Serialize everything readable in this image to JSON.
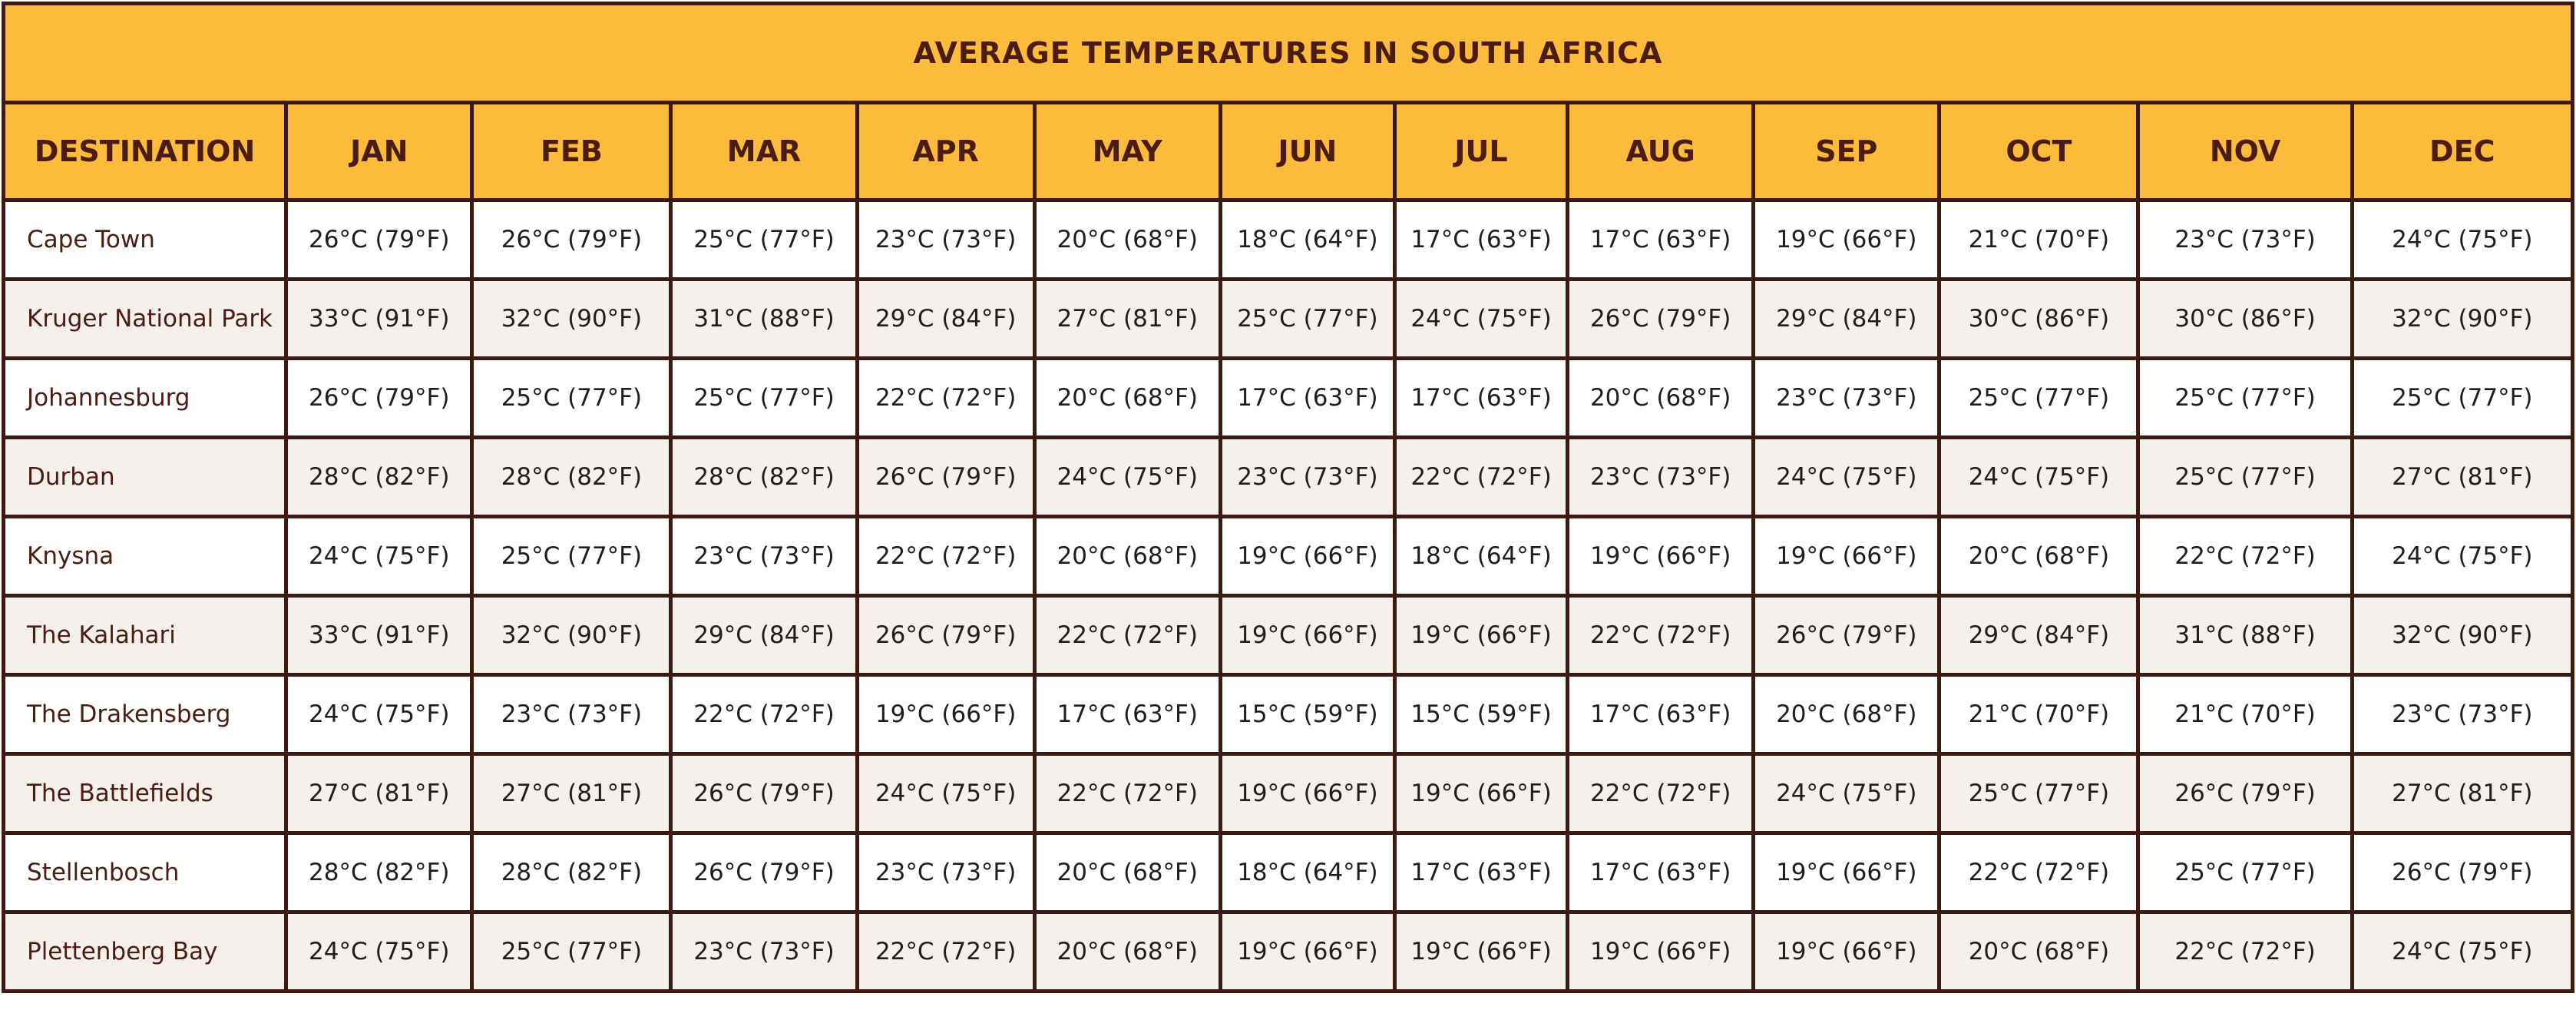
{
  "title": "AVERAGE TEMPERATURES IN SOUTH AFRICA",
  "table": {
    "header": [
      "DESTINATION",
      "JAN",
      "FEB",
      "MAR",
      "APR",
      "MAY",
      "JUN",
      "JUL",
      "AUG",
      "SEP",
      "OCT",
      "NOV",
      "DEC"
    ],
    "rows": [
      [
        "Cape Town",
        "26°C (79°F)",
        "26°C (79°F)",
        "25°C (77°F)",
        "23°C (73°F)",
        "20°C (68°F)",
        "18°C (64°F)",
        "17°C (63°F)",
        "17°C (63°F)",
        "19°C (66°F)",
        "21°C (70°F)",
        "23°C (73°F)",
        "24°C (75°F)"
      ],
      [
        "Kruger National Park",
        "33°C (91°F)",
        "32°C (90°F)",
        "31°C (88°F)",
        "29°C (84°F)",
        "27°C (81°F)",
        "25°C (77°F)",
        "24°C (75°F)",
        "26°C (79°F)",
        "29°C (84°F)",
        "30°C (86°F)",
        "30°C (86°F)",
        "32°C (90°F)"
      ],
      [
        "Johannesburg",
        "26°C (79°F)",
        "25°C (77°F)",
        "25°C (77°F)",
        "22°C (72°F)",
        "20°C (68°F)",
        "17°C (63°F)",
        "17°C (63°F)",
        "20°C (68°F)",
        "23°C (73°F)",
        "25°C (77°F)",
        "25°C (77°F)",
        "25°C (77°F)"
      ],
      [
        "Durban",
        "28°C (82°F)",
        "28°C (82°F)",
        "28°C (82°F)",
        "26°C (79°F)",
        "24°C (75°F)",
        "23°C (73°F)",
        "22°C (72°F)",
        "23°C (73°F)",
        "24°C (75°F)",
        "24°C (75°F)",
        "25°C (77°F)",
        "27°C (81°F)"
      ],
      [
        "Knysna",
        "24°C (75°F)",
        "25°C (77°F)",
        "23°C (73°F)",
        "22°C (72°F)",
        "20°C (68°F)",
        "19°C (66°F)",
        "18°C (64°F)",
        "19°C (66°F)",
        "19°C (66°F)",
        "20°C (68°F)",
        "22°C (72°F)",
        "24°C (75°F)"
      ],
      [
        "The Kalahari",
        "33°C (91°F)",
        "32°C (90°F)",
        "29°C (84°F)",
        "26°C (79°F)",
        "22°C (72°F)",
        "19°C (66°F)",
        "19°C (66°F)",
        "22°C (72°F)",
        "26°C (79°F)",
        "29°C (84°F)",
        "31°C (88°F)",
        "32°C (90°F)"
      ],
      [
        "The Drakensberg",
        "24°C (75°F)",
        "23°C (73°F)",
        "22°C (72°F)",
        "19°C (66°F)",
        "17°C (63°F)",
        "15°C (59°F)",
        "15°C (59°F)",
        "17°C (63°F)",
        "20°C (68°F)",
        "21°C (70°F)",
        "21°C (70°F)",
        "23°C (73°F)"
      ],
      [
        "The Battlefields",
        "27°C (81°F)",
        "27°C (81°F)",
        "26°C (79°F)",
        "24°C (75°F)",
        "22°C (72°F)",
        "19°C (66°F)",
        "19°C (66°F)",
        "22°C (72°F)",
        "24°C (75°F)",
        "25°C (77°F)",
        "26°C (79°F)",
        "27°C (81°F)"
      ],
      [
        "Stellenbosch",
        "28°C (82°F)",
        "28°C (82°F)",
        "26°C (79°F)",
        "23°C (73°F)",
        "20°C (68°F)",
        "18°C (64°F)",
        "17°C (63°F)",
        "17°C (63°F)",
        "19°C (66°F)",
        "22°C (72°F)",
        "25°C (77°F)",
        "26°C (79°F)"
      ],
      [
        "Plettenberg Bay",
        "24°C (75°F)",
        "25°C (77°F)",
        "23°C (73°F)",
        "22°C (72°F)",
        "20°C (68°F)",
        "19°C (66°F)",
        "19°C (66°F)",
        "19°C (66°F)",
        "19°C (66°F)",
        "20°C (68°F)",
        "22°C (72°F)",
        "24°C (75°F)"
      ]
    ]
  }
}
